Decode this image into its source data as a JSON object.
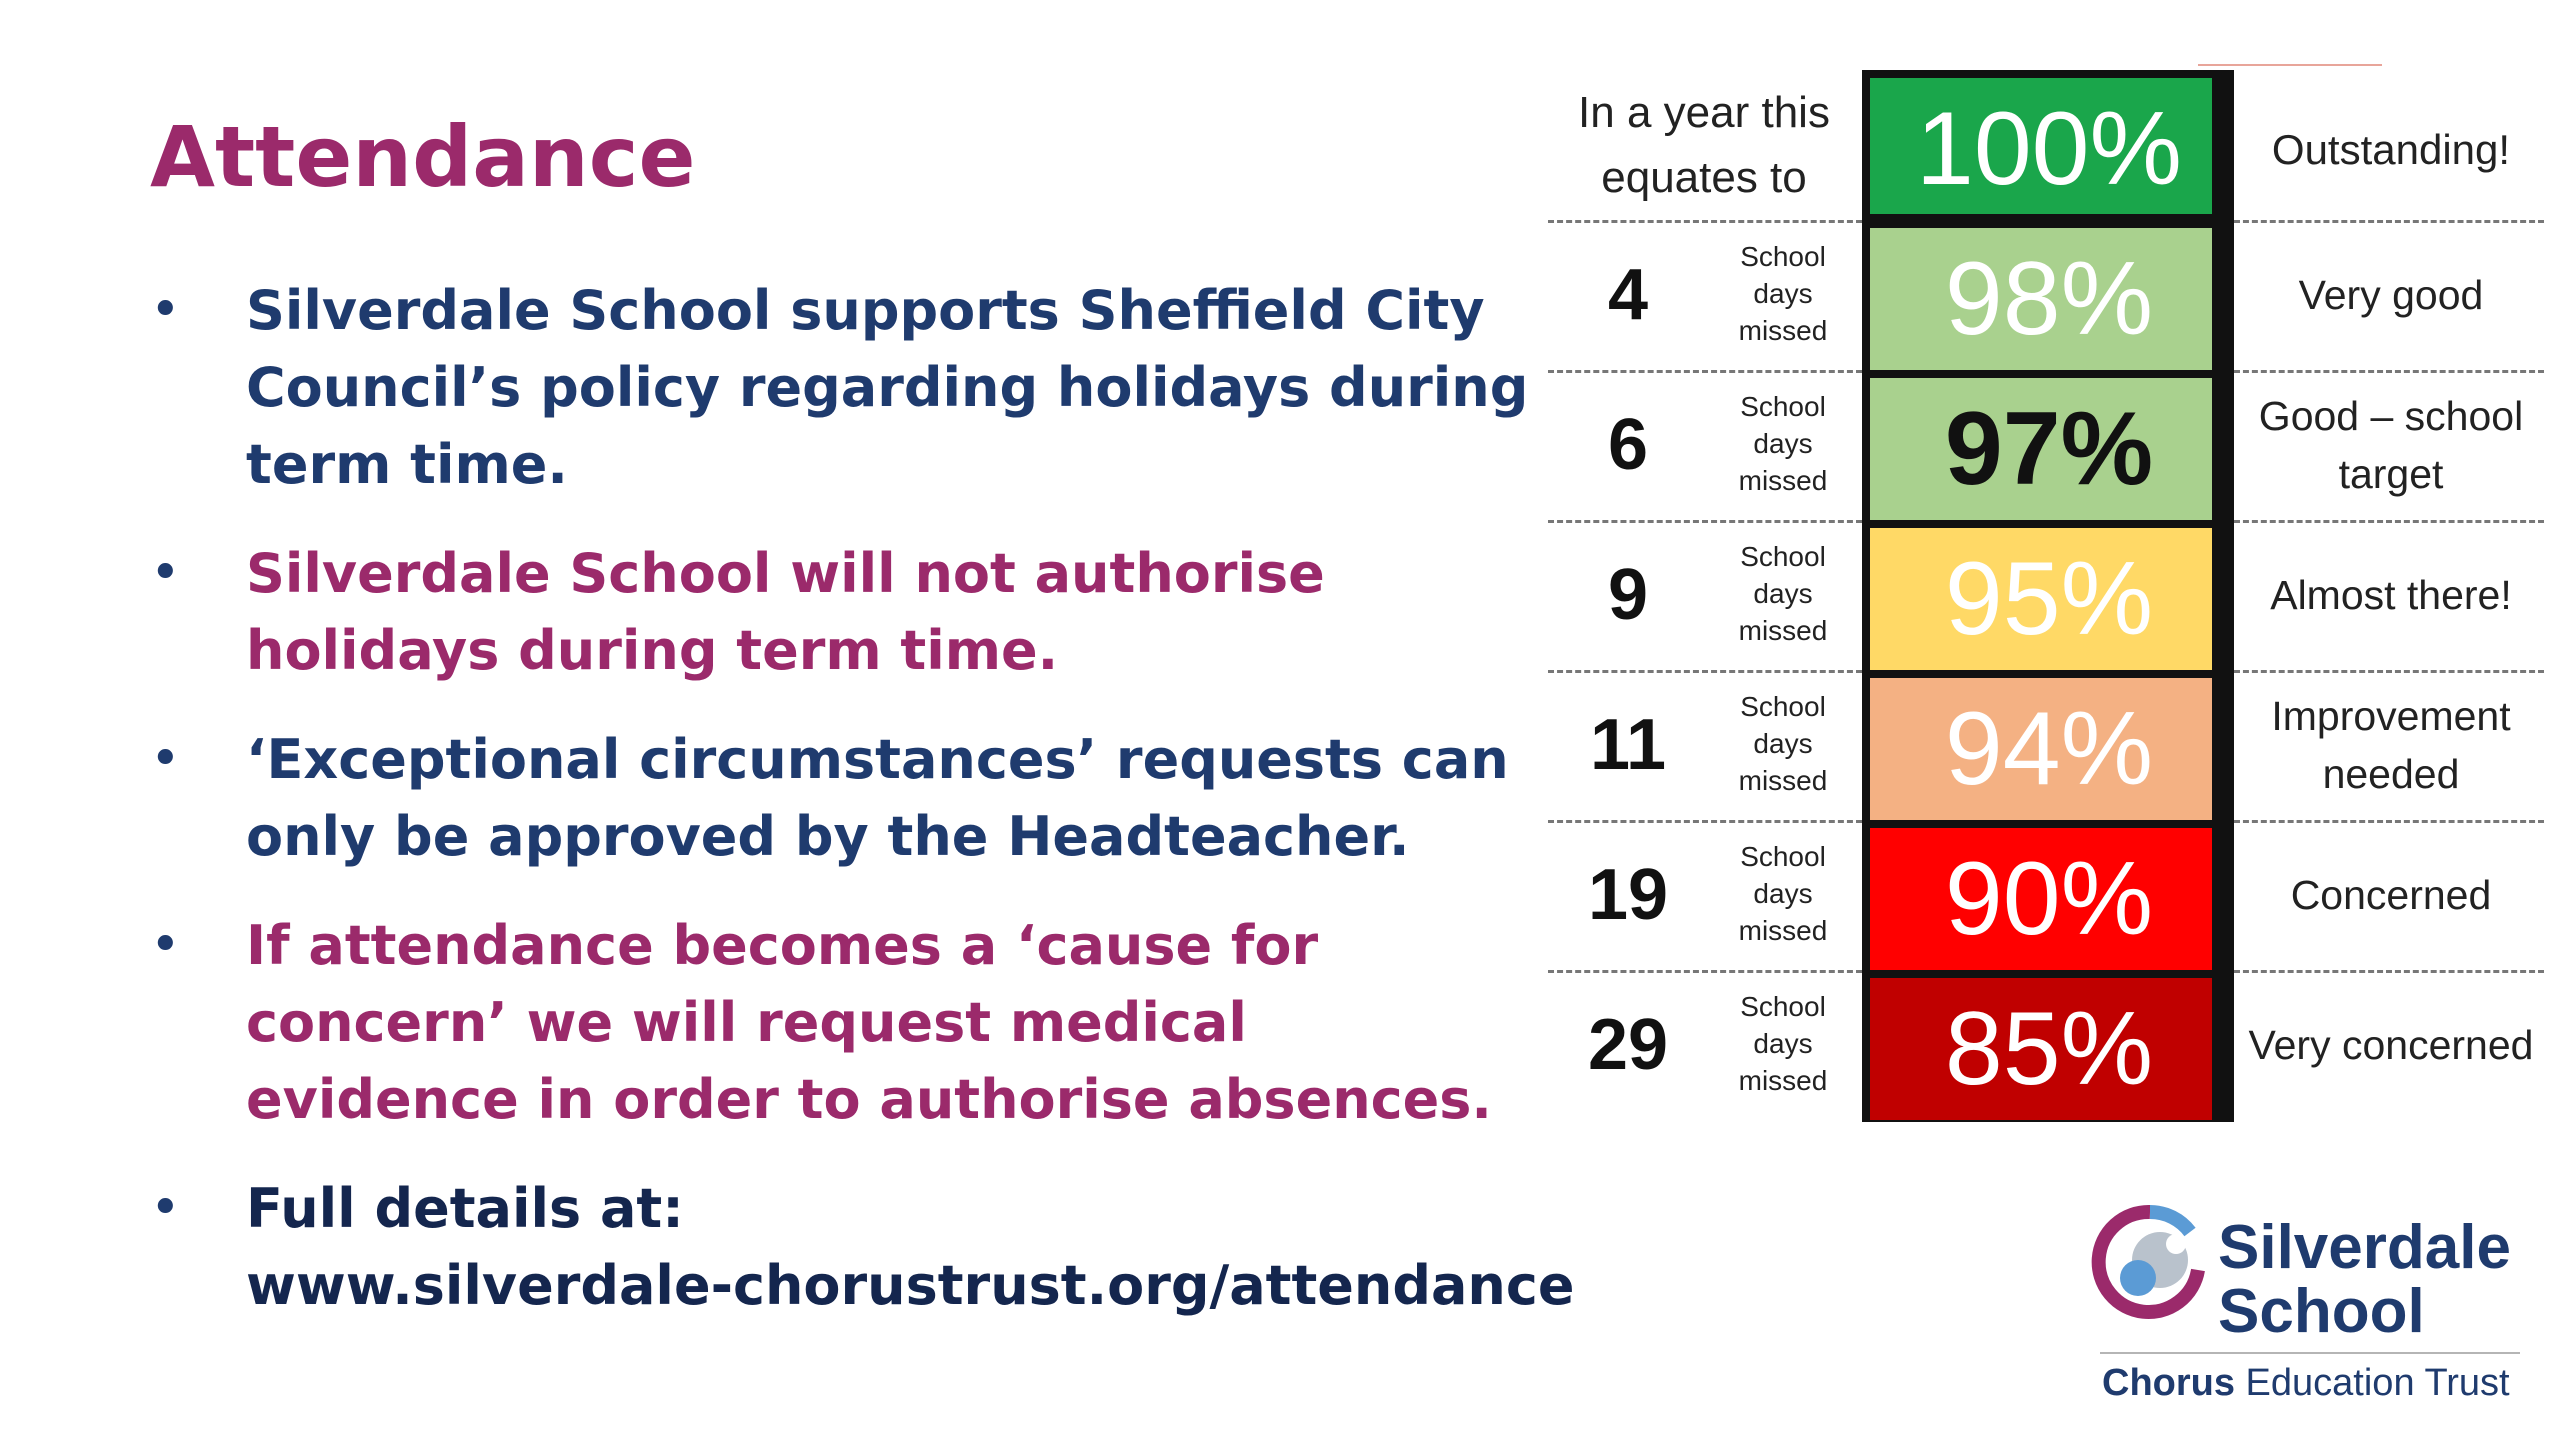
{
  "slide": {
    "title": "Attendance",
    "bullets": [
      {
        "text": "Silverdale School supports Sheffield City Council’s policy regarding holidays during term time.",
        "color": "#1f3b6e"
      },
      {
        "text": "Silverdale School will not authorise holidays during term time.",
        "color": "#9b2a6b"
      },
      {
        "text": "‘Exceptional circumstances’ requests can only be approved by the Headteacher.",
        "color": "#1f3b6e"
      },
      {
        "text": "If attendance becomes a ‘cause for concern’ we will request medical evidence in order to authorise absences.",
        "color": "#9b2a6b"
      }
    ],
    "details_label": "Full details at:",
    "details_url": "www.silverdale-chorustrust.org/attendance",
    "bullet_glyph": "•"
  },
  "attendance_table": {
    "header_left": "In a year this equates to",
    "days_label": "School days missed",
    "rows": [
      {
        "percent": "100%",
        "days": "",
        "description": "Outstanding!",
        "color": "#1aa64b"
      },
      {
        "percent": "98%",
        "days": "4",
        "description": "Very good",
        "color": "#a9d18e"
      },
      {
        "percent": "97%",
        "days": "6",
        "description": "Good – school target",
        "color": "#a9d18e"
      },
      {
        "percent": "95%",
        "days": "9",
        "description": "Almost there!",
        "color": "#ffd966"
      },
      {
        "percent": "94%",
        "days": "11",
        "description": "Improvement needed",
        "color": "#f4b183"
      },
      {
        "percent": "90%",
        "days": "19",
        "description": "Concerned",
        "color": "#ff0000"
      },
      {
        "percent": "85%",
        "days": "29",
        "description": "Very concerned",
        "color": "#c00000"
      }
    ]
  },
  "logo": {
    "name_line1": "Silverdale",
    "name_line2": "School",
    "trust_bold": "Chorus",
    "trust_rest": " Education Trust"
  }
}
